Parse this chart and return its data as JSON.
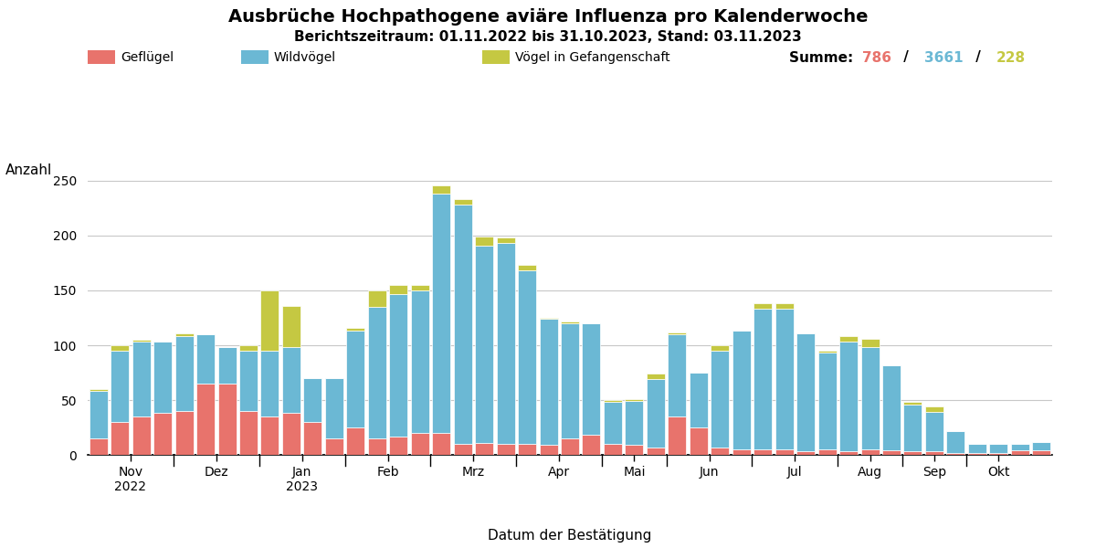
{
  "title": "Ausbrüche Hochpathogene aviäre Influenza pro Kalenderwoche",
  "subtitle": "Berichtszeitraum: 01.11.2022 bis 31.10.2023, Stand: 03.11.2023",
  "xlabel": "Datum der Bestätigung",
  "ylabel": "Anzahl",
  "legend_labels": [
    "Geflügel",
    "Wildvögel",
    "Vögel in Gefangenschaft"
  ],
  "colors": {
    "gefluegel": "#E8736C",
    "wildvoegel": "#6BB8D4",
    "gefangenschaft": "#C5C842"
  },
  "summe_label": "Summe:",
  "summe_values": [
    "786",
    "3661",
    "228"
  ],
  "summe_colors": [
    "#E8736C",
    "#6BB8D4",
    "#C5C842"
  ],
  "month_labels": [
    "Nov\n2022",
    "Dez",
    "Jan\n2023",
    "Feb",
    "Mrz",
    "Apr",
    "Mai",
    "Jun",
    "Jul",
    "Aug",
    "Sep",
    "Okt"
  ],
  "ylim": [
    0,
    260
  ],
  "yticks": [
    0,
    50,
    100,
    150,
    200,
    250
  ],
  "weeks": [
    {
      "gefluegel": 15,
      "wildvoegel": 43,
      "gefangenschaft": 2
    },
    {
      "gefluegel": 30,
      "wildvoegel": 65,
      "gefangenschaft": 5
    },
    {
      "gefluegel": 35,
      "wildvoegel": 68,
      "gefangenschaft": 2
    },
    {
      "gefluegel": 38,
      "wildvoegel": 65,
      "gefangenschaft": 0
    },
    {
      "gefluegel": 40,
      "wildvoegel": 68,
      "gefangenschaft": 3
    },
    {
      "gefluegel": 65,
      "wildvoegel": 45,
      "gefangenschaft": 0
    },
    {
      "gefluegel": 65,
      "wildvoegel": 33,
      "gefangenschaft": 0
    },
    {
      "gefluegel": 40,
      "wildvoegel": 55,
      "gefangenschaft": 5
    },
    {
      "gefluegel": 35,
      "wildvoegel": 60,
      "gefangenschaft": 55
    },
    {
      "gefluegel": 38,
      "wildvoegel": 60,
      "gefangenschaft": 38
    },
    {
      "gefluegel": 30,
      "wildvoegel": 40,
      "gefangenschaft": 0
    },
    {
      "gefluegel": 15,
      "wildvoegel": 55,
      "gefangenschaft": 0
    },
    {
      "gefluegel": 25,
      "wildvoegel": 88,
      "gefangenschaft": 3
    },
    {
      "gefluegel": 15,
      "wildvoegel": 120,
      "gefangenschaft": 15
    },
    {
      "gefluegel": 17,
      "wildvoegel": 130,
      "gefangenschaft": 8
    },
    {
      "gefluegel": 20,
      "wildvoegel": 130,
      "gefangenschaft": 5
    },
    {
      "gefluegel": 20,
      "wildvoegel": 218,
      "gefangenschaft": 8
    },
    {
      "gefluegel": 10,
      "wildvoegel": 218,
      "gefangenschaft": 5
    },
    {
      "gefluegel": 11,
      "wildvoegel": 180,
      "gefangenschaft": 8
    },
    {
      "gefluegel": 10,
      "wildvoegel": 183,
      "gefangenschaft": 5
    },
    {
      "gefluegel": 10,
      "wildvoegel": 158,
      "gefangenschaft": 5
    },
    {
      "gefluegel": 9,
      "wildvoegel": 115,
      "gefangenschaft": 1
    },
    {
      "gefluegel": 15,
      "wildvoegel": 105,
      "gefangenschaft": 2
    },
    {
      "gefluegel": 18,
      "wildvoegel": 102,
      "gefangenschaft": 0
    },
    {
      "gefluegel": 10,
      "wildvoegel": 38,
      "gefangenschaft": 2
    },
    {
      "gefluegel": 9,
      "wildvoegel": 40,
      "gefangenschaft": 2
    },
    {
      "gefluegel": 7,
      "wildvoegel": 62,
      "gefangenschaft": 5
    },
    {
      "gefluegel": 35,
      "wildvoegel": 75,
      "gefangenschaft": 2
    },
    {
      "gefluegel": 25,
      "wildvoegel": 50,
      "gefangenschaft": 0
    },
    {
      "gefluegel": 7,
      "wildvoegel": 88,
      "gefangenschaft": 5
    },
    {
      "gefluegel": 5,
      "wildvoegel": 108,
      "gefangenschaft": 0
    },
    {
      "gefluegel": 5,
      "wildvoegel": 128,
      "gefangenschaft": 5
    },
    {
      "gefluegel": 5,
      "wildvoegel": 128,
      "gefangenschaft": 5
    },
    {
      "gefluegel": 3,
      "wildvoegel": 108,
      "gefangenschaft": 0
    },
    {
      "gefluegel": 5,
      "wildvoegel": 88,
      "gefangenschaft": 2
    },
    {
      "gefluegel": 3,
      "wildvoegel": 100,
      "gefangenschaft": 5
    },
    {
      "gefluegel": 5,
      "wildvoegel": 93,
      "gefangenschaft": 8
    },
    {
      "gefluegel": 4,
      "wildvoegel": 78,
      "gefangenschaft": 0
    },
    {
      "gefluegel": 3,
      "wildvoegel": 43,
      "gefangenschaft": 2
    },
    {
      "gefluegel": 3,
      "wildvoegel": 36,
      "gefangenschaft": 5
    },
    {
      "gefluegel": 2,
      "wildvoegel": 20,
      "gefangenschaft": 0
    },
    {
      "gefluegel": 2,
      "wildvoegel": 8,
      "gefangenschaft": 0
    },
    {
      "gefluegel": 2,
      "wildvoegel": 8,
      "gefangenschaft": 0
    },
    {
      "gefluegel": 4,
      "wildvoegel": 6,
      "gefangenschaft": 0
    },
    {
      "gefluegel": 4,
      "wildvoegel": 8,
      "gefangenschaft": 0
    }
  ],
  "background_color": "#FFFFFF",
  "grid_color": "#C8C8C8",
  "bar_edge_color": "#FFFFFF",
  "title_fontsize": 14,
  "subtitle_fontsize": 11,
  "label_fontsize": 11,
  "tick_fontsize": 10,
  "legend_fontsize": 10,
  "summe_fontsize": 11,
  "month_sep_positions": [
    3.5,
    7.5,
    11.5,
    15.5,
    19.5,
    23.5,
    26.5,
    30.5,
    34.5,
    37.5,
    40.5
  ],
  "month_tick_positions": [
    1.5,
    5.5,
    9.5,
    13.5,
    17.5,
    21.5,
    25.0,
    28.5,
    32.5,
    36.0,
    39.0,
    42.0
  ]
}
